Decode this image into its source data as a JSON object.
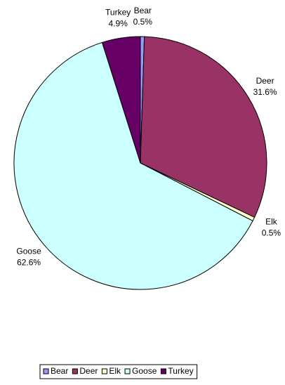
{
  "chart_data": {
    "type": "pie",
    "categories": [
      "Bear",
      "Deer",
      "Elk",
      "Goose",
      "Turkey"
    ],
    "values": [
      0.5,
      31.6,
      0.5,
      62.6,
      4.9
    ],
    "value_labels": [
      "0.5%",
      "31.6%",
      "0.5%",
      "62.6%",
      "4.9%"
    ],
    "colors": [
      "#9999ff",
      "#993366",
      "#ffffcc",
      "#ccffff",
      "#660066"
    ],
    "legend": "bottom"
  }
}
